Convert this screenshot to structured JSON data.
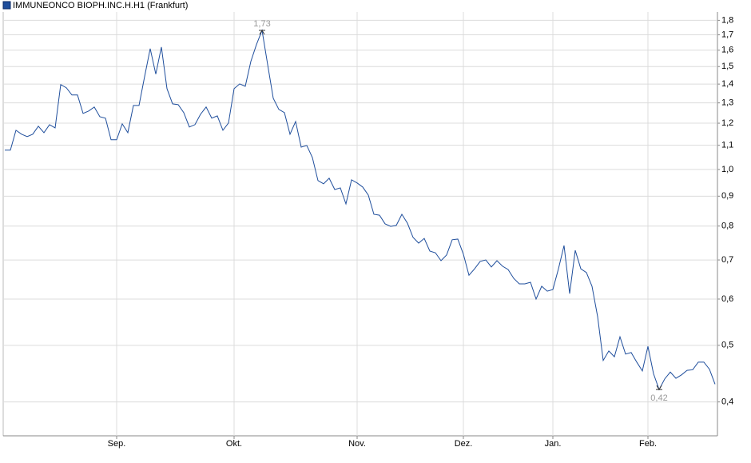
{
  "chart_data": {
    "type": "line",
    "yscale": "log",
    "grid": true,
    "ylim": [
      0.35,
      1.86
    ],
    "yticks": [
      {
        "value": 0.4,
        "label": "0,4"
      },
      {
        "value": 0.5,
        "label": "0,5"
      },
      {
        "value": 0.6,
        "label": "0,6"
      },
      {
        "value": 0.7,
        "label": "0,7"
      },
      {
        "value": 0.8,
        "label": "0,8"
      },
      {
        "value": 0.9,
        "label": "0,9"
      },
      {
        "value": 1.0,
        "label": "1,0"
      },
      {
        "value": 1.1,
        "label": "1,1"
      },
      {
        "value": 1.2,
        "label": "1,2"
      },
      {
        "value": 1.3,
        "label": "1,3"
      },
      {
        "value": 1.4,
        "label": "1,4"
      },
      {
        "value": 1.5,
        "label": "1,5"
      },
      {
        "value": 1.6,
        "label": "1,6"
      },
      {
        "value": 1.7,
        "label": "1,7"
      },
      {
        "value": 1.8,
        "label": "1,8"
      }
    ],
    "categories": [
      null,
      null,
      null,
      null,
      null,
      null,
      null,
      null,
      null,
      null,
      null,
      null,
      null,
      null,
      null,
      null,
      null,
      null,
      null,
      null,
      "Sep.",
      null,
      null,
      null,
      null,
      null,
      null,
      null,
      null,
      null,
      null,
      null,
      null,
      null,
      null,
      null,
      null,
      null,
      null,
      null,
      null,
      "Okt.",
      null,
      null,
      null,
      null,
      null,
      null,
      null,
      null,
      null,
      null,
      null,
      null,
      null,
      null,
      null,
      null,
      null,
      null,
      null,
      null,
      null,
      "Nov.",
      null,
      null,
      null,
      null,
      null,
      null,
      null,
      null,
      null,
      null,
      null,
      null,
      null,
      null,
      null,
      null,
      null,
      null,
      "Dez.",
      null,
      null,
      null,
      null,
      null,
      null,
      null,
      null,
      null,
      null,
      null,
      null,
      null,
      null,
      null,
      "Jan.",
      null,
      null,
      null,
      null,
      null,
      null,
      null,
      null,
      null,
      null,
      null,
      null,
      null,
      null,
      null,
      null,
      "Feb.",
      null,
      null,
      null,
      null,
      null,
      null,
      null,
      null,
      null,
      null,
      null,
      null
    ],
    "series": [
      {
        "name": "IMMUNEONCO BIOPH.INC.H.H1 (Frankfurt)",
        "color": "#1f4e9c",
        "values": [
          1.079,
          1.079,
          1.167,
          1.149,
          1.138,
          1.149,
          1.186,
          1.156,
          1.193,
          1.178,
          1.397,
          1.38,
          1.341,
          1.341,
          1.247,
          1.259,
          1.279,
          1.231,
          1.224,
          1.124,
          1.124,
          1.197,
          1.156,
          1.287,
          1.287,
          1.442,
          1.61,
          1.456,
          1.62,
          1.375,
          1.295,
          1.291,
          1.251,
          1.182,
          1.193,
          1.243,
          1.279,
          1.224,
          1.235,
          1.167,
          1.201,
          1.375,
          1.401,
          1.388,
          1.531,
          1.636,
          1.73,
          1.512,
          1.324,
          1.267,
          1.251,
          1.149,
          1.208,
          1.092,
          1.099,
          1.048,
          0.957,
          0.945,
          0.966,
          0.924,
          0.93,
          0.873,
          0.96,
          0.948,
          0.933,
          0.904,
          0.838,
          0.835,
          0.807,
          0.799,
          0.802,
          0.838,
          0.809,
          0.765,
          0.748,
          0.762,
          0.725,
          0.72,
          0.698,
          0.714,
          0.758,
          0.76,
          0.716,
          0.659,
          0.676,
          0.696,
          0.7,
          0.681,
          0.698,
          0.683,
          0.674,
          0.651,
          0.637,
          0.637,
          0.641,
          0.6,
          0.631,
          0.619,
          0.623,
          0.676,
          0.741,
          0.613,
          0.727,
          0.676,
          0.666,
          0.631,
          0.56,
          0.471,
          0.489,
          0.478,
          0.517,
          0.483,
          0.486,
          0.468,
          0.452,
          0.498,
          0.447,
          0.42,
          0.438,
          0.45,
          0.439,
          0.445,
          0.453,
          0.454,
          0.468,
          0.468,
          0.455,
          0.429
        ],
        "value_labels": [
          null,
          null,
          null,
          null,
          null,
          null,
          null,
          null,
          null,
          null,
          null,
          null,
          null,
          null,
          null,
          null,
          null,
          null,
          null,
          null,
          null,
          null,
          null,
          null,
          null,
          null,
          null,
          null,
          null,
          null,
          null,
          null,
          null,
          null,
          null,
          null,
          null,
          null,
          null,
          null,
          null,
          null,
          null,
          null,
          null,
          null,
          "1,73",
          null,
          null,
          null,
          null,
          null,
          null,
          null,
          null,
          null,
          null,
          null,
          null,
          null,
          null,
          null,
          null,
          null,
          null,
          null,
          null,
          null,
          null,
          null,
          null,
          null,
          null,
          null,
          null,
          null,
          null,
          null,
          null,
          null,
          null,
          null,
          null,
          null,
          null,
          null,
          null,
          null,
          null,
          null,
          null,
          null,
          null,
          null,
          null,
          null,
          null,
          null,
          null,
          null,
          null,
          null,
          null,
          null,
          null,
          null,
          null,
          null,
          null,
          null,
          null,
          null,
          null,
          null,
          null,
          null,
          null,
          "0,42",
          null,
          null,
          null,
          null,
          null,
          null,
          null,
          null,
          null,
          null
        ]
      }
    ]
  }
}
